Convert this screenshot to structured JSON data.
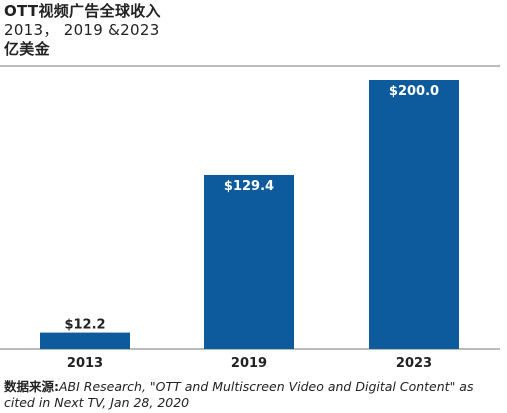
{
  "chart_data": {
    "type": "bar",
    "title_lines": [
      "OTT视频广告全球收入",
      "2013， 2019 &2023",
      "亿美金"
    ],
    "categories": [
      "2013",
      "2019",
      "2023"
    ],
    "values": [
      12.2,
      129.4,
      200.0
    ],
    "data_labels": [
      "$12.2",
      "$129.4",
      "$200.0"
    ],
    "ylim": [
      0,
      200
    ],
    "bar_color": "#0d5b9c",
    "grid": false,
    "legend": "none"
  },
  "source": {
    "label": "数据来源:",
    "text": "ABI Research, \"OTT and Multiscreen Video and Digital Content\" as cited in Next TV, Jan 28, 2020"
  }
}
